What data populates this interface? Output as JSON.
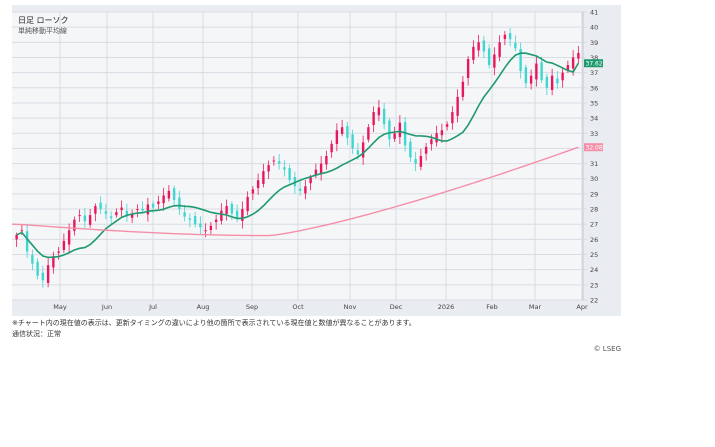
{
  "header": {
    "title": "日足 ローソク",
    "subtitle": "単純移動平均線"
  },
  "footer": {
    "note": "※チャート内の現在値の表示は、更新タイミングの違いにより他の箇所で表示されている現在値と数値が異なることがあります。",
    "status": "通信状況：正常",
    "copyright": "© LSEG"
  },
  "colors": {
    "up_candle": "#e8175d",
    "down_candle": "#3fd6d2",
    "ma_short": "#1f9a6e",
    "ma_long": "#f58fa8",
    "grid": "#d9dce3",
    "plot_bg": "#f5f6f8",
    "frame_bg": "#e9ecf1"
  },
  "chart_data": {
    "type": "candlestick",
    "title": "日足 ローソク",
    "subtitle": "単純移動平均線",
    "xlabel": "",
    "ylabel": "",
    "ylim": [
      22,
      41
    ],
    "yticks": [
      22,
      23,
      24,
      25,
      26,
      27,
      28,
      29,
      30,
      31,
      32,
      33,
      34,
      35,
      36,
      37,
      38,
      39,
      40,
      41
    ],
    "xticks": [
      "May",
      "Jun",
      "Jul",
      "Aug",
      "Sep",
      "Oct",
      "Nov",
      "Dec",
      "2026",
      "Feb",
      "Mar",
      "Apr"
    ],
    "grid": true,
    "legend_position": "top-left",
    "current_value_badges": [
      {
        "series": "ma_short",
        "value": "37.62"
      },
      {
        "series": "ma_long",
        "value": "32.08"
      }
    ],
    "closes": [
      26.3,
      26.6,
      25.2,
      24.4,
      23.6,
      23.3,
      24.3,
      24.9,
      25.2,
      25.9,
      26.6,
      27.3,
      27.6,
      27.2,
      27.6,
      28.2,
      28.0,
      27.7,
      27.4,
      27.8,
      28.1,
      27.5,
      27.7,
      28.0,
      27.9,
      28.3,
      28.1,
      28.5,
      28.9,
      29.2,
      28.6,
      28.0,
      27.5,
      27.3,
      27.0,
      26.8,
      26.6,
      26.9,
      27.3,
      27.9,
      28.2,
      27.7,
      27.4,
      28.0,
      28.8,
      29.3,
      29.9,
      30.5,
      30.9,
      31.2,
      31.0,
      30.6,
      29.9,
      29.5,
      29.2,
      29.5,
      30.1,
      30.6,
      31.0,
      31.5,
      32.3,
      33.2,
      33.4,
      32.7,
      32.0,
      31.6,
      32.4,
      33.4,
      34.4,
      34.7,
      33.6,
      32.6,
      33.0,
      33.7,
      32.2,
      31.4,
      31.0,
      31.5,
      32.1,
      32.6,
      33.0,
      33.2,
      33.6,
      34.4,
      35.4,
      36.4,
      37.9,
      38.7,
      39.0,
      38.4,
      37.5,
      38.2,
      39.0,
      39.5,
      39.2,
      38.6,
      37.1,
      36.3,
      36.8,
      37.6,
      36.5,
      36.0,
      36.8,
      36.3,
      37.0,
      37.5,
      38.0,
      38.3
    ],
    "ma_short_end": 37.62,
    "ma_long_end": 32.08
  }
}
